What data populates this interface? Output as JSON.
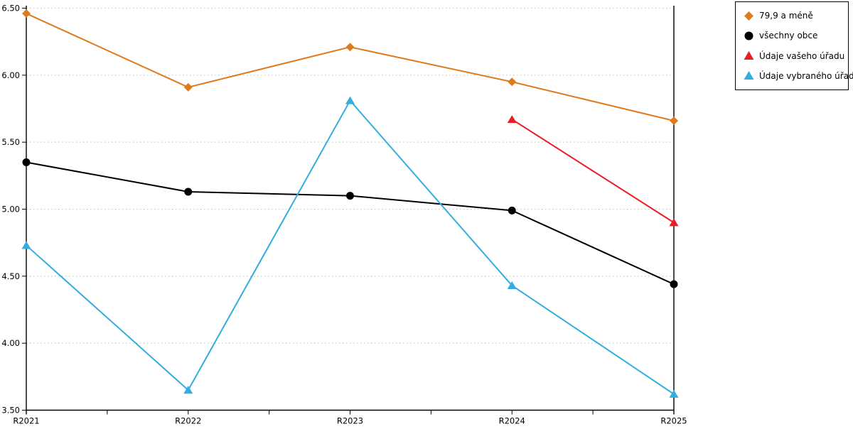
{
  "chart_data": {
    "type": "line",
    "title": "",
    "xlabel": "",
    "ylabel": "",
    "categories": [
      "R2021",
      "R2022",
      "R2023",
      "R2024",
      "R2025"
    ],
    "series": [
      {
        "name": "79,9 a méně",
        "color": "#DF7A1D",
        "marker": "diamond",
        "values": [
          6.46,
          5.91,
          6.21,
          5.95,
          5.66
        ]
      },
      {
        "name": "všechny obce",
        "color": "#000000",
        "marker": "circle",
        "values": [
          5.35,
          5.13,
          5.1,
          4.99,
          4.44
        ]
      },
      {
        "name": "Údaje vašeho úřadu",
        "color": "#EC1C24",
        "marker": "triangle",
        "values": [
          null,
          null,
          null,
          5.67,
          4.9
        ]
      },
      {
        "name": "Údaje vybraného úřadu",
        "color": "#33ADE0",
        "marker": "triangle",
        "values": [
          4.73,
          3.65,
          5.81,
          4.43,
          3.62
        ]
      }
    ],
    "ylim": [
      3.5,
      6.5
    ],
    "y_ticks": [
      "6.50",
      "6.00",
      "5.50",
      "5.00",
      "4.50",
      "4.00",
      "3.50"
    ],
    "grid": "horizontal-dotted",
    "legend_position": "top-right"
  },
  "colors": {
    "grid": "#BEBEBE",
    "axis": "#000000",
    "background": "#FFFFFF"
  }
}
